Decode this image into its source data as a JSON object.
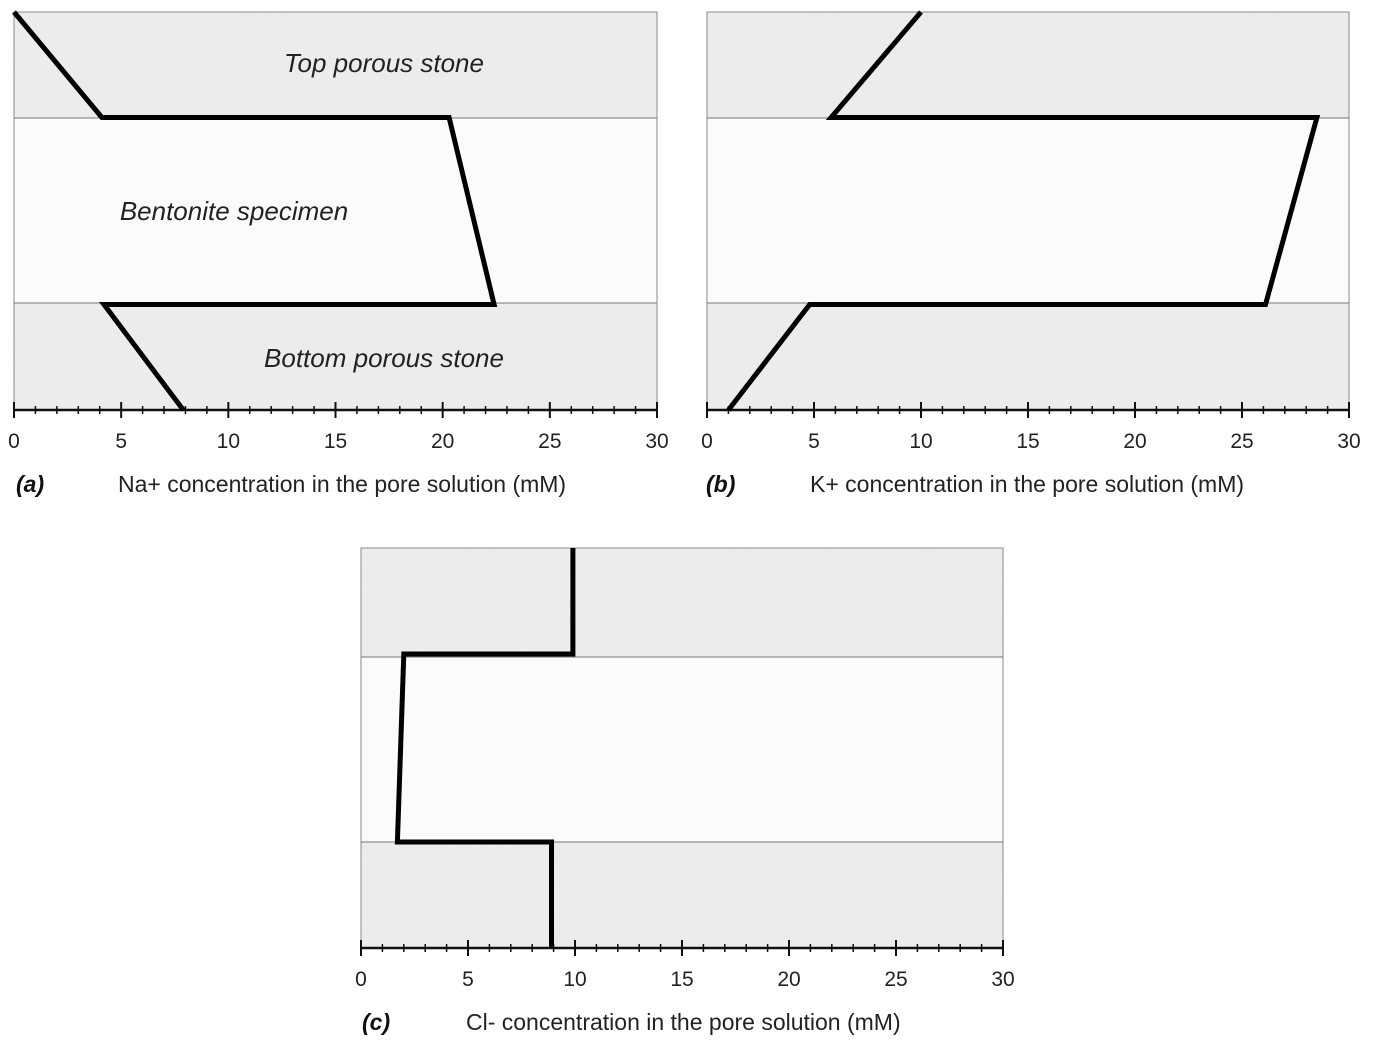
{
  "chart_data": [
    {
      "type": "line",
      "panel_label": "(a)",
      "xlabel": "Na+ concentration in the pore solution (mM)",
      "xlim": [
        0,
        30
      ],
      "x_ticks": [
        0,
        5,
        10,
        15,
        20,
        25,
        30
      ],
      "region_labels": [
        "Top porous stone",
        "Bentonite specimen",
        "Bottom porous stone"
      ],
      "profile": {
        "x": [
          0,
          4.1,
          20.3,
          22.4,
          4.2,
          7.9
        ],
        "depth_fraction": [
          0.0,
          0.265,
          0.265,
          0.735,
          0.735,
          1.0
        ]
      }
    },
    {
      "type": "line",
      "panel_label": "(b)",
      "xlabel": "K+ concentration in the pore solution (mM)",
      "xlim": [
        0,
        30
      ],
      "x_ticks": [
        0,
        5,
        10,
        15,
        20,
        25,
        30
      ],
      "region_labels": [],
      "profile": {
        "x": [
          10.0,
          5.8,
          28.5,
          26.1,
          4.8,
          1.0
        ],
        "depth_fraction": [
          0.0,
          0.265,
          0.265,
          0.735,
          0.735,
          1.0
        ]
      }
    },
    {
      "type": "line",
      "panel_label": "(c)",
      "xlabel": "Cl- concentration in the pore solution (mM)",
      "xlim": [
        0,
        30
      ],
      "x_ticks": [
        0,
        5,
        10,
        15,
        20,
        25,
        30
      ],
      "region_labels": [],
      "profile": {
        "x": [
          9.9,
          9.9,
          2.0,
          1.7,
          8.9,
          8.9
        ],
        "depth_fraction": [
          0.0,
          0.265,
          0.265,
          0.735,
          0.735,
          1.0
        ]
      }
    }
  ]
}
